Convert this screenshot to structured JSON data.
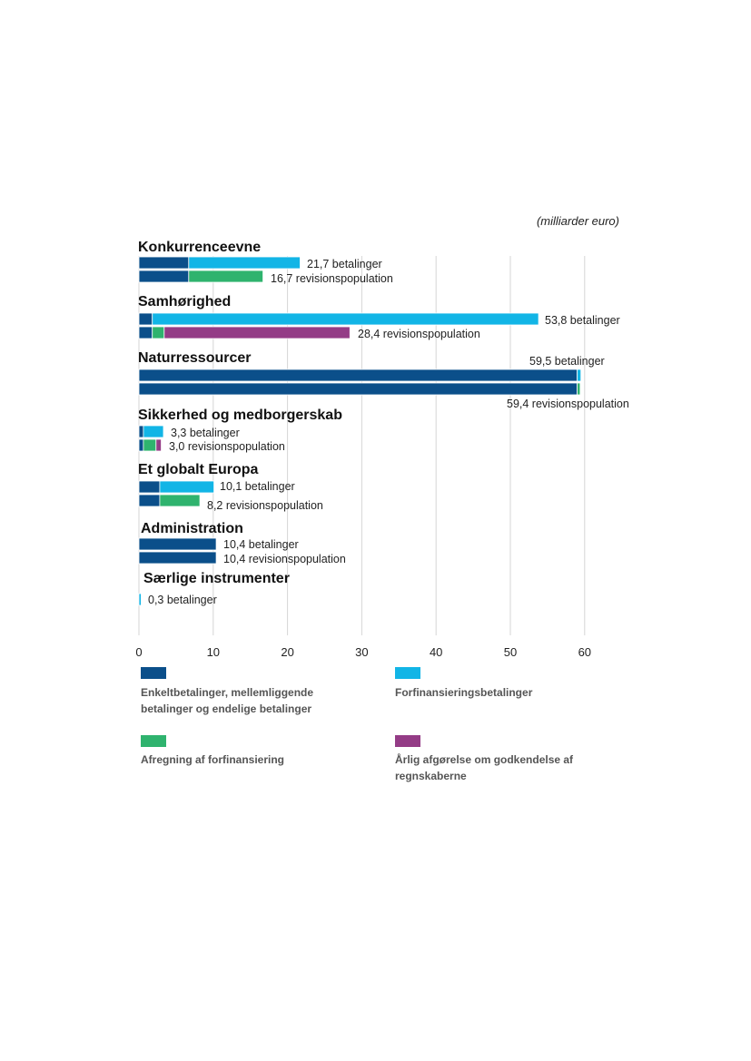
{
  "chart_data": {
    "type": "bar",
    "orientation": "horizontal",
    "stacked": true,
    "unit_label": "(milliarder euro)",
    "xlim": [
      0,
      60
    ],
    "x_ticks": [
      0,
      10,
      20,
      30,
      40,
      50,
      60
    ],
    "grid": true,
    "colors": {
      "enkelt": "#0b4f8a",
      "forfinansiering": "#12b5e6",
      "afregning": "#2fb36e",
      "aarlig": "#943c86"
    },
    "legend": [
      {
        "key": "enkelt",
        "label_lines": [
          "Enkeltbetalinger, mellemliggende",
          "betalinger og endelige betalinger"
        ]
      },
      {
        "key": "forfinansiering",
        "label_lines": [
          "Forfinansieringsbetalinger"
        ]
      },
      {
        "key": "afregning",
        "label_lines": [
          "Afregning af forfinansiering"
        ]
      },
      {
        "key": "aarlig",
        "label_lines": [
          "Årlig afgørelse om godkendelse af",
          "regnskaberne"
        ]
      }
    ],
    "groups": [
      {
        "name": "Konkurrenceevne",
        "bars": [
          {
            "label": "21,7 betalinger",
            "segments": [
              {
                "key": "enkelt",
                "value": 6.7
              },
              {
                "key": "forfinansiering",
                "value": 15.0
              }
            ]
          },
          {
            "label": "16,7 revisionspopulation",
            "segments": [
              {
                "key": "enkelt",
                "value": 6.7
              },
              {
                "key": "afregning",
                "value": 10.0
              }
            ]
          }
        ]
      },
      {
        "name": "Samhørighed",
        "bars": [
          {
            "label": "53,8 betalinger",
            "segments": [
              {
                "key": "enkelt",
                "value": 1.8
              },
              {
                "key": "forfinansiering",
                "value": 52.0
              }
            ]
          },
          {
            "label": "28,4 revisionspopulation",
            "segments": [
              {
                "key": "enkelt",
                "value": 1.8
              },
              {
                "key": "afregning",
                "value": 1.6
              },
              {
                "key": "aarlig",
                "value": 25.0
              }
            ]
          }
        ]
      },
      {
        "name": "Naturressourcer",
        "bars": [
          {
            "label": "59,5 betalinger",
            "segments": [
              {
                "key": "enkelt",
                "value": 59.0
              },
              {
                "key": "forfinansiering",
                "value": 0.5
              }
            ]
          },
          {
            "label": "59,4 revisionspopulation",
            "segments": [
              {
                "key": "enkelt",
                "value": 59.0
              },
              {
                "key": "afregning",
                "value": 0.4
              }
            ]
          }
        ]
      },
      {
        "name": "Sikkerhed og medborgerskab",
        "bars": [
          {
            "label": "3,3 betalinger",
            "segments": [
              {
                "key": "enkelt",
                "value": 0.6
              },
              {
                "key": "forfinansiering",
                "value": 2.7
              }
            ]
          },
          {
            "label": "3,0 revisionspopulation",
            "segments": [
              {
                "key": "enkelt",
                "value": 0.6
              },
              {
                "key": "afregning",
                "value": 1.7
              },
              {
                "key": "aarlig",
                "value": 0.7
              }
            ]
          }
        ]
      },
      {
        "name": "Et globalt Europa",
        "bars": [
          {
            "label": "10,1 betalinger",
            "segments": [
              {
                "key": "enkelt",
                "value": 2.8
              },
              {
                "key": "forfinansiering",
                "value": 7.3
              }
            ]
          },
          {
            "label": "8,2 revisionspopulation",
            "segments": [
              {
                "key": "enkelt",
                "value": 2.8
              },
              {
                "key": "afregning",
                "value": 5.4
              }
            ]
          }
        ]
      },
      {
        "name": "Administration",
        "bars": [
          {
            "label": "10,4 betalinger",
            "segments": [
              {
                "key": "enkelt",
                "value": 10.4
              }
            ]
          },
          {
            "label": "10,4 revisionspopulation",
            "segments": [
              {
                "key": "enkelt",
                "value": 10.4
              }
            ]
          }
        ]
      },
      {
        "name": "Særlige instrumenter",
        "bars": [
          {
            "label": "0,3 betalinger",
            "segments": [
              {
                "key": "forfinansiering",
                "value": 0.3
              }
            ]
          }
        ]
      }
    ]
  }
}
